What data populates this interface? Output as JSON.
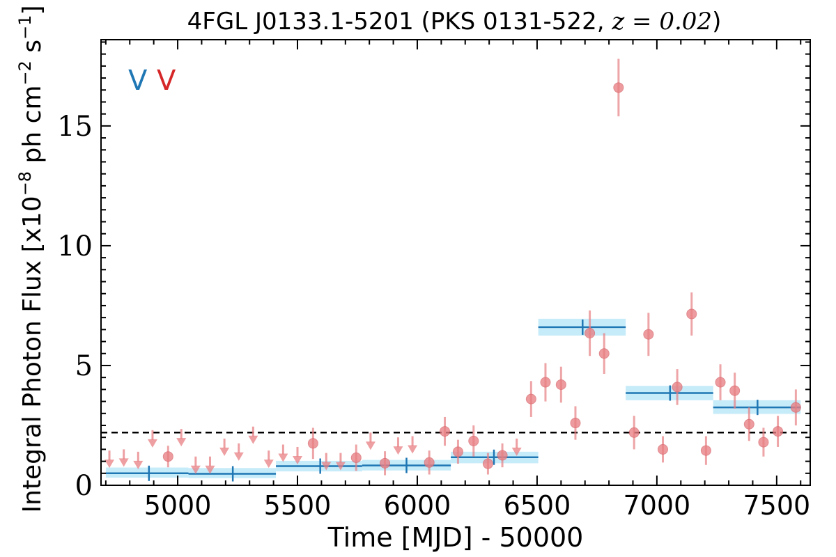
{
  "chart_data": {
    "type": "scatter",
    "title_prefix": "4FGL J0133.1-5201 (PKS 0131-522, ",
    "title_math": "z = 0.02",
    "title_suffix": ")",
    "xlabel": "Time [MJD] - 50000",
    "ylabel_prefix": "Integral Photon Flux [x10",
    "ylabel_exp1": "−8",
    "ylabel_mid": " ph cm",
    "ylabel_exp2": "−2",
    "ylabel_mid2": " s",
    "ylabel_exp3": "−1",
    "ylabel_suffix": "]",
    "xlim": [
      4680,
      7640
    ],
    "ylim": [
      0,
      18.6
    ],
    "xticks": [
      5000,
      5500,
      6000,
      6500,
      7000,
      7500
    ],
    "yticks": [
      0,
      5,
      10,
      15
    ],
    "xtick_labels": [
      "5000",
      "5500",
      "6000",
      "6500",
      "7000",
      "7500"
    ],
    "ytick_labels": [
      "0",
      "5",
      "10",
      "15"
    ],
    "reference_line": 2.2,
    "legend_markers": [
      {
        "label": "V",
        "color": "#1f77b4"
      },
      {
        "label": "V",
        "color": "#d62728"
      }
    ],
    "colors": {
      "binned_line": "#1f77b4",
      "binned_band": "#c6ebf9",
      "monthly": "#e87f83",
      "reference": "#000000"
    },
    "binned": [
      {
        "x0": 4700,
        "x1": 5045,
        "xc": 4880,
        "y": 0.5,
        "ylo": 0.32,
        "yhi": 0.74
      },
      {
        "x0": 5045,
        "x1": 5410,
        "xc": 5230,
        "y": 0.48,
        "ylo": 0.3,
        "yhi": 0.72
      },
      {
        "x0": 5410,
        "x1": 5770,
        "xc": 5595,
        "y": 0.8,
        "ylo": 0.58,
        "yhi": 1.02
      },
      {
        "x0": 5770,
        "x1": 6140,
        "xc": 5955,
        "y": 0.83,
        "ylo": 0.62,
        "yhi": 1.06
      },
      {
        "x0": 6140,
        "x1": 6505,
        "xc": 6320,
        "y": 1.17,
        "ylo": 0.92,
        "yhi": 1.4
      },
      {
        "x0": 6505,
        "x1": 6870,
        "xc": 6690,
        "y": 6.6,
        "ylo": 6.25,
        "yhi": 6.95
      },
      {
        "x0": 6870,
        "x1": 7235,
        "xc": 7055,
        "y": 3.85,
        "ylo": 3.55,
        "yhi": 4.15
      },
      {
        "x0": 7235,
        "x1": 7600,
        "xc": 7420,
        "y": 3.25,
        "ylo": 2.98,
        "yhi": 3.55
      }
    ],
    "detections": [
      {
        "x": 4960,
        "y": 1.2,
        "err": 0.45
      },
      {
        "x": 5565,
        "y": 1.75,
        "err": 0.65
      },
      {
        "x": 5745,
        "y": 1.15,
        "err": 0.55
      },
      {
        "x": 5865,
        "y": 0.92,
        "err": 0.5
      },
      {
        "x": 6050,
        "y": 0.95,
        "err": 0.5
      },
      {
        "x": 6115,
        "y": 2.25,
        "err": 0.6
      },
      {
        "x": 6170,
        "y": 1.4,
        "err": 0.5
      },
      {
        "x": 6235,
        "y": 1.85,
        "err": 0.65
      },
      {
        "x": 6295,
        "y": 0.9,
        "err": 0.45
      },
      {
        "x": 6355,
        "y": 1.25,
        "err": 0.5
      },
      {
        "x": 6475,
        "y": 3.6,
        "err": 0.75
      },
      {
        "x": 6535,
        "y": 4.3,
        "err": 0.8
      },
      {
        "x": 6600,
        "y": 4.2,
        "err": 0.75
      },
      {
        "x": 6660,
        "y": 2.6,
        "err": 0.7
      },
      {
        "x": 6720,
        "y": 6.35,
        "err": 0.95
      },
      {
        "x": 6780,
        "y": 5.5,
        "err": 0.85
      },
      {
        "x": 6840,
        "y": 16.6,
        "err": 1.2
      },
      {
        "x": 6905,
        "y": 2.2,
        "err": 0.7
      },
      {
        "x": 6965,
        "y": 6.3,
        "err": 0.9
      },
      {
        "x": 7025,
        "y": 1.5,
        "err": 0.55
      },
      {
        "x": 7085,
        "y": 4.1,
        "err": 0.75
      },
      {
        "x": 7145,
        "y": 7.15,
        "err": 0.9
      },
      {
        "x": 7205,
        "y": 1.45,
        "err": 0.6
      },
      {
        "x": 7265,
        "y": 4.3,
        "err": 0.75
      },
      {
        "x": 7325,
        "y": 3.95,
        "err": 0.75
      },
      {
        "x": 7385,
        "y": 2.55,
        "err": 0.7
      },
      {
        "x": 7445,
        "y": 1.8,
        "err": 0.6
      },
      {
        "x": 7505,
        "y": 2.25,
        "err": 0.65
      },
      {
        "x": 7580,
        "y": 3.25,
        "err": 0.75
      }
    ],
    "upper_limits": [
      {
        "x": 4715,
        "y": 1.45
      },
      {
        "x": 4775,
        "y": 1.5
      },
      {
        "x": 4835,
        "y": 1.4
      },
      {
        "x": 4895,
        "y": 2.3
      },
      {
        "x": 5015,
        "y": 2.35
      },
      {
        "x": 5075,
        "y": 1.2
      },
      {
        "x": 5135,
        "y": 1.2
      },
      {
        "x": 5195,
        "y": 1.95
      },
      {
        "x": 5255,
        "y": 1.75
      },
      {
        "x": 5315,
        "y": 2.45
      },
      {
        "x": 5380,
        "y": 1.45
      },
      {
        "x": 5440,
        "y": 1.7
      },
      {
        "x": 5500,
        "y": 1.6
      },
      {
        "x": 5620,
        "y": 1.35
      },
      {
        "x": 5680,
        "y": 1.35
      },
      {
        "x": 5805,
        "y": 2.2
      },
      {
        "x": 5920,
        "y": 2.0
      },
      {
        "x": 5980,
        "y": 2.05
      },
      {
        "x": 6415,
        "y": 1.95
      }
    ]
  }
}
